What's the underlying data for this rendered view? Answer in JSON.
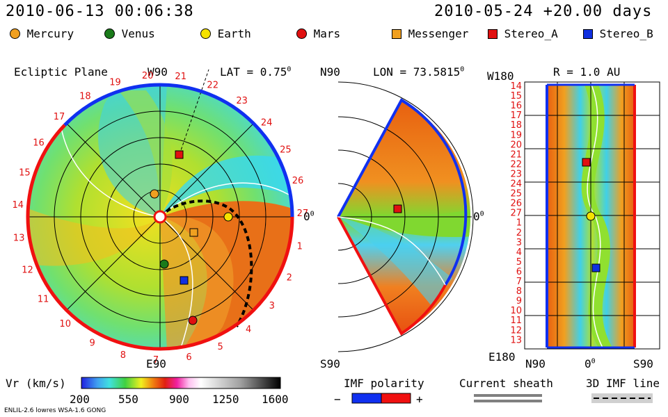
{
  "header": {
    "date_left": "2010-06-13 00:06:38",
    "date_right": "2010-05-24 +20.00 days"
  },
  "legend": [
    {
      "label": "Mercury",
      "shape": "circle",
      "color": "#f0a020"
    },
    {
      "label": "Venus",
      "shape": "circle",
      "color": "#1a7a1a"
    },
    {
      "label": "Earth",
      "shape": "circle",
      "color": "#f5e200"
    },
    {
      "label": "Mars",
      "shape": "circle",
      "color": "#e01010"
    },
    {
      "label": "Messenger",
      "shape": "square",
      "color": "#f0a020"
    },
    {
      "label": "Stereo_A",
      "shape": "square",
      "color": "#e01010"
    },
    {
      "label": "Stereo_B",
      "shape": "square",
      "color": "#1030e0"
    }
  ],
  "panel_ecliptic": {
    "title": "Ecliptic Plane",
    "top_label": "W90",
    "lat_label": "LAT = 0.75",
    "lat_sup": "0",
    "bottom_label": "E90",
    "right_label": "0",
    "right_sup": "0",
    "rotation_numbers": [
      "20",
      "21",
      "22",
      "23",
      "24",
      "25",
      "26",
      "27",
      "1",
      "2",
      "3",
      "4",
      "5",
      "6",
      "7",
      "8",
      "9",
      "10",
      "11",
      "12",
      "13",
      "14",
      "15",
      "16",
      "17",
      "18",
      "19"
    ]
  },
  "panel_meridional": {
    "top_label": "N90",
    "lon_label": "LON = 73.5815",
    "lon_sup": "0",
    "bottom_label": "S90",
    "right_label": "0",
    "right_sup": "0"
  },
  "panel_sphere": {
    "top_left_label": "W180",
    "r_label": "R = 1.0 AU",
    "bottom_left_label": "E180",
    "bottom_labels": [
      "N90",
      "0",
      "S90"
    ],
    "bottom_sup": "0",
    "rotation_numbers": [
      "14",
      "15",
      "16",
      "17",
      "18",
      "19",
      "20",
      "21",
      "22",
      "23",
      "24",
      "25",
      "26",
      "27",
      "1",
      "2",
      "3",
      "4",
      "5",
      "6",
      "7",
      "8",
      "9",
      "10",
      "11",
      "12",
      "13"
    ]
  },
  "colorbar": {
    "label": "Vr (km/s)",
    "ticks": [
      "200",
      "550",
      "900",
      "1250",
      "1600"
    ]
  },
  "imf": {
    "title": "IMF polarity",
    "minus": "−",
    "plus": "+"
  },
  "sheath": {
    "title": "Current sheath"
  },
  "imfline": {
    "title": "3D IMF line"
  },
  "footer": {
    "credit": "ENLIL-2.6 lowres WSA-1.6 GONG"
  },
  "colors": {
    "slow": "#38d8f0",
    "mid": "#90e020",
    "fast": "#e84810",
    "positive": "#f01010",
    "negative": "#1030f0"
  }
}
